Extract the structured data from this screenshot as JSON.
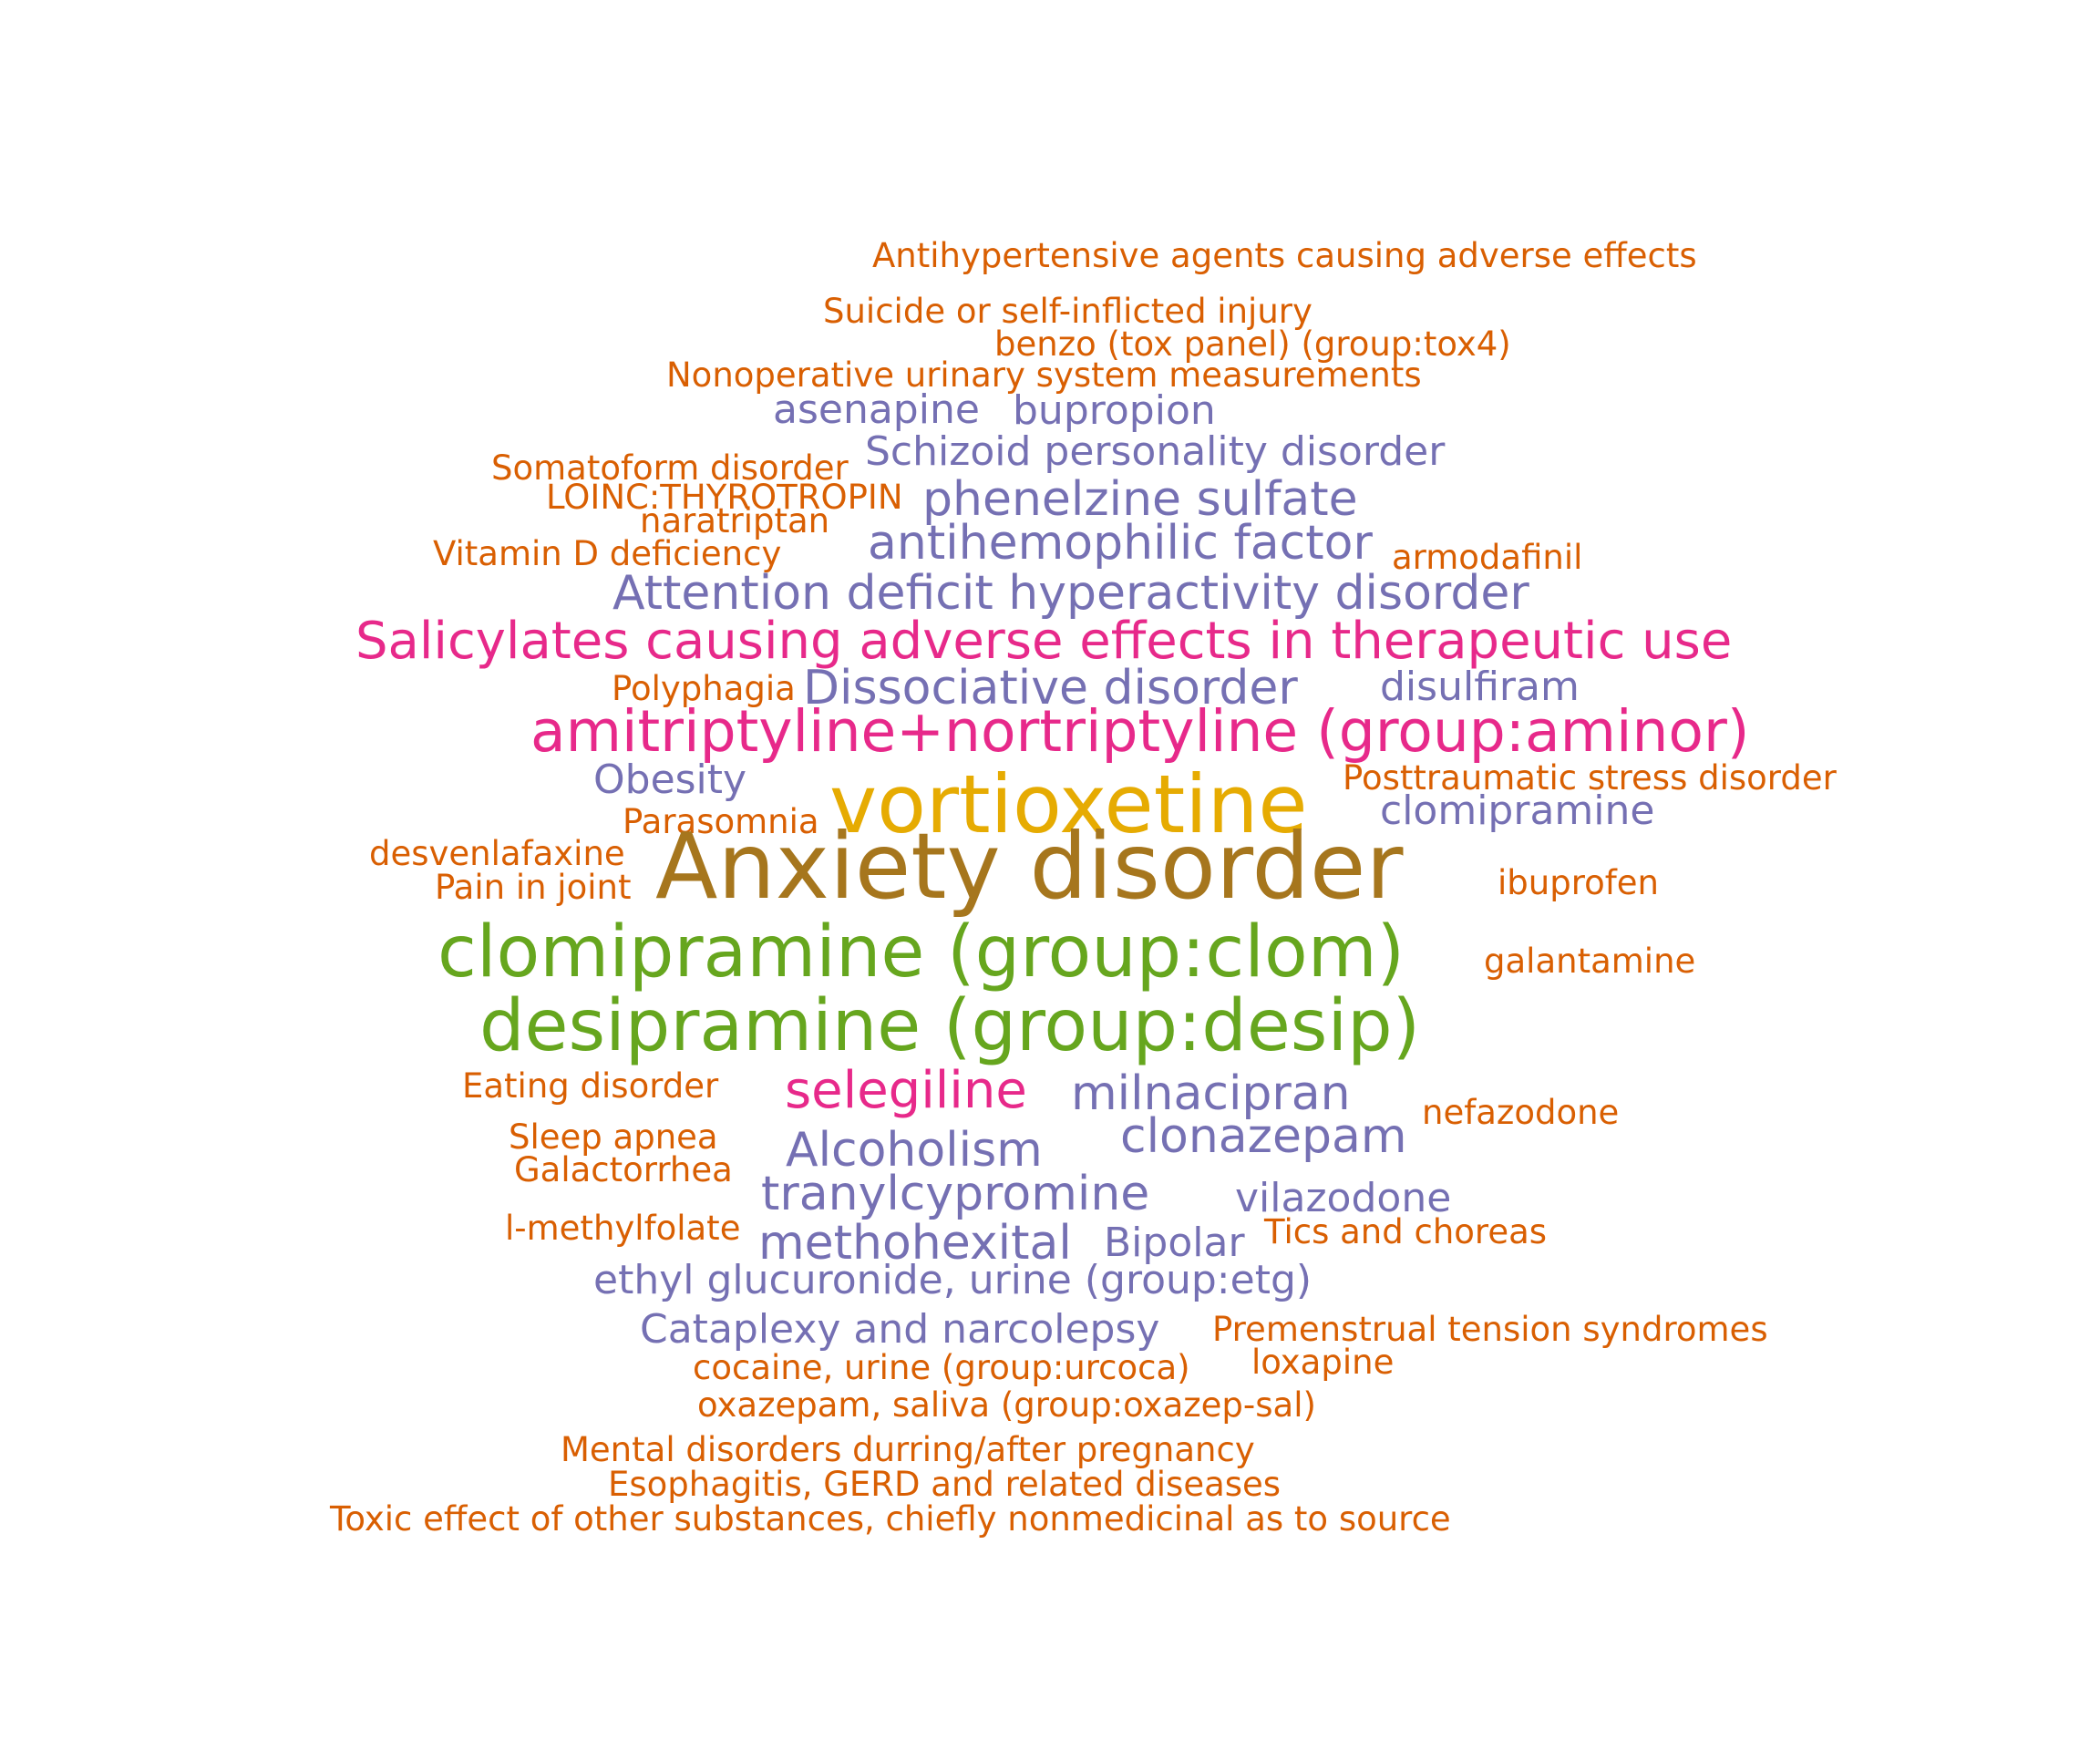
{
  "colors": {
    "orange": "#d95f02",
    "purple": "#7570b3",
    "magenta": "#e7298a",
    "gold": "#e6ab02",
    "brown": "#a6761d",
    "green": "#66a61e"
  },
  "words": [
    {
      "text": "Antihypertensive agents causing adverse effects",
      "color": "orange"
    },
    {
      "text": "Suicide or self-inflicted injury",
      "color": "orange"
    },
    {
      "text": "benzo (tox panel) (group:tox4)",
      "color": "orange"
    },
    {
      "text": "Nonoperative urinary system measurements",
      "color": "orange"
    },
    {
      "text": "asenapine",
      "color": "purple"
    },
    {
      "text": "bupropion",
      "color": "purple"
    },
    {
      "text": "Schizoid personality disorder",
      "color": "purple"
    },
    {
      "text": "Somatoform disorder",
      "color": "orange"
    },
    {
      "text": "LOINC:THYROTROPIN",
      "color": "orange"
    },
    {
      "text": "phenelzine sulfate",
      "color": "purple"
    },
    {
      "text": "naratriptan",
      "color": "orange"
    },
    {
      "text": "Vitamin D deficiency",
      "color": "orange"
    },
    {
      "text": "antihemophilic factor",
      "color": "purple"
    },
    {
      "text": "armodafinil",
      "color": "orange"
    },
    {
      "text": "Attention deficit hyperactivity disorder",
      "color": "purple"
    },
    {
      "text": "Salicylates causing adverse effects in therapeutic use",
      "color": "magenta"
    },
    {
      "text": "Polyphagia",
      "color": "orange"
    },
    {
      "text": "Dissociative disorder",
      "color": "purple"
    },
    {
      "text": "disulfiram",
      "color": "purple"
    },
    {
      "text": "amitriptyline+nortriptyline (group:aminor)",
      "color": "magenta"
    },
    {
      "text": "Obesity",
      "color": "purple"
    },
    {
      "text": "Posttraumatic stress disorder",
      "color": "orange"
    },
    {
      "text": "vortioxetine",
      "color": "gold"
    },
    {
      "text": "clomipramine",
      "color": "purple"
    },
    {
      "text": "Parasomnia",
      "color": "orange"
    },
    {
      "text": "desvenlafaxine",
      "color": "orange"
    },
    {
      "text": "Anxiety disorder",
      "color": "brown"
    },
    {
      "text": "Pain in joint",
      "color": "orange"
    },
    {
      "text": "ibuprofen",
      "color": "orange"
    },
    {
      "text": "clomipramine (group:clom)",
      "color": "green"
    },
    {
      "text": "galantamine",
      "color": "orange"
    },
    {
      "text": "desipramine (group:desip)",
      "color": "green"
    },
    {
      "text": "Eating disorder",
      "color": "orange"
    },
    {
      "text": "selegiline",
      "color": "magenta"
    },
    {
      "text": "milnacipran",
      "color": "purple"
    },
    {
      "text": "nefazodone",
      "color": "orange"
    },
    {
      "text": "clonazepam",
      "color": "purple"
    },
    {
      "text": "Sleep apnea",
      "color": "orange"
    },
    {
      "text": "Alcoholism",
      "color": "purple"
    },
    {
      "text": "Galactorrhea",
      "color": "orange"
    },
    {
      "text": "tranylcypromine",
      "color": "purple"
    },
    {
      "text": "vilazodone",
      "color": "purple"
    },
    {
      "text": "l-methylfolate",
      "color": "orange"
    },
    {
      "text": "Tics and choreas",
      "color": "orange"
    },
    {
      "text": "methohexital",
      "color": "purple"
    },
    {
      "text": "Bipolar",
      "color": "purple"
    },
    {
      "text": "ethyl glucuronide, urine (group:etg)",
      "color": "purple"
    },
    {
      "text": "Cataplexy and narcolepsy",
      "color": "purple"
    },
    {
      "text": "Premenstrual tension syndromes",
      "color": "orange"
    },
    {
      "text": "cocaine, urine (group:urcoca)",
      "color": "orange"
    },
    {
      "text": "loxapine",
      "color": "orange"
    },
    {
      "text": "oxazepam, saliva (group:oxazep-sal)",
      "color": "orange"
    },
    {
      "text": "Mental disorders durring/after pregnancy",
      "color": "orange"
    },
    {
      "text": "Esophagitis, GERD and related diseases",
      "color": "orange"
    },
    {
      "text": "Toxic effect of other substances, chiefly nonmedicinal as to source",
      "color": "orange"
    }
  ]
}
